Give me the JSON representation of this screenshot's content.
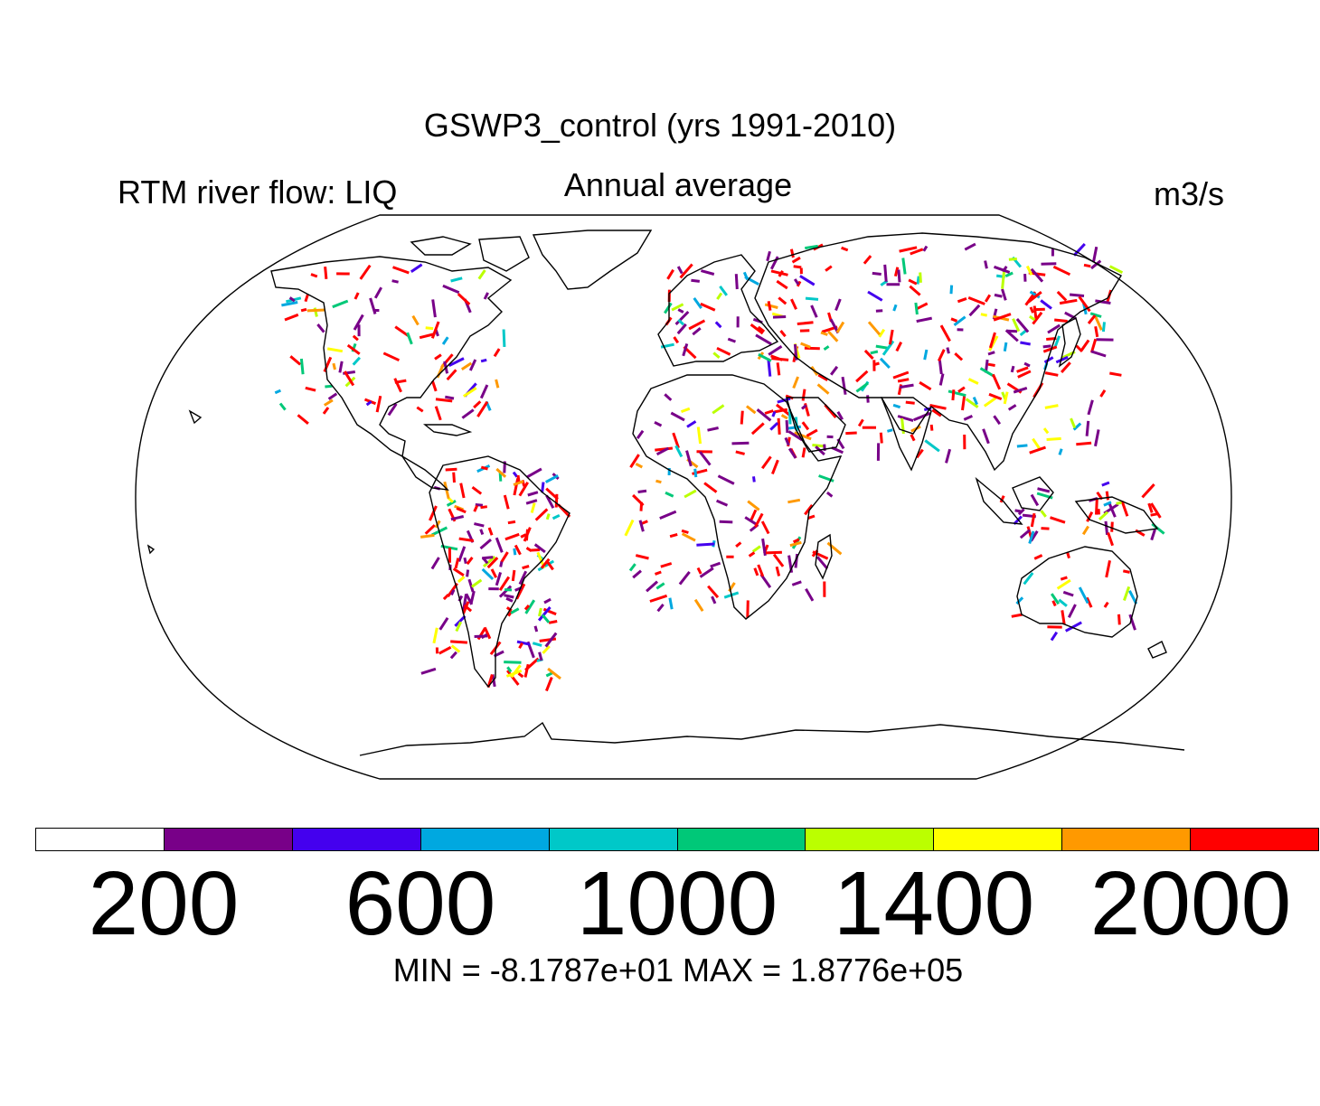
{
  "title": "GSWP3_control (yrs 1991-2010)",
  "left_label": "RTM river flow: LIQ",
  "center_label": "Annual average",
  "units": "m3/s",
  "colorbar": {
    "colors": [
      "#ffffff",
      "#780088",
      "#4400ee",
      "#00a8e0",
      "#00c8c8",
      "#00c878",
      "#bbff00",
      "#ffff00",
      "#ff9900",
      "#ff0000"
    ],
    "tick_labels": [
      "200",
      "600",
      "1000",
      "1400",
      "2000"
    ]
  },
  "stats_text": "MIN = -8.1787e+01 MAX = 1.8776e+05",
  "chart_data": {
    "type": "heatmap",
    "title": "GSWP3_control (yrs 1991-2010)",
    "variable": "RTM river flow: LIQ",
    "period": "Annual average",
    "units": "m3/s",
    "colorbar_ticks": [
      200,
      600,
      1000,
      1400,
      2000
    ],
    "min": -81.787,
    "max": 187760
  }
}
